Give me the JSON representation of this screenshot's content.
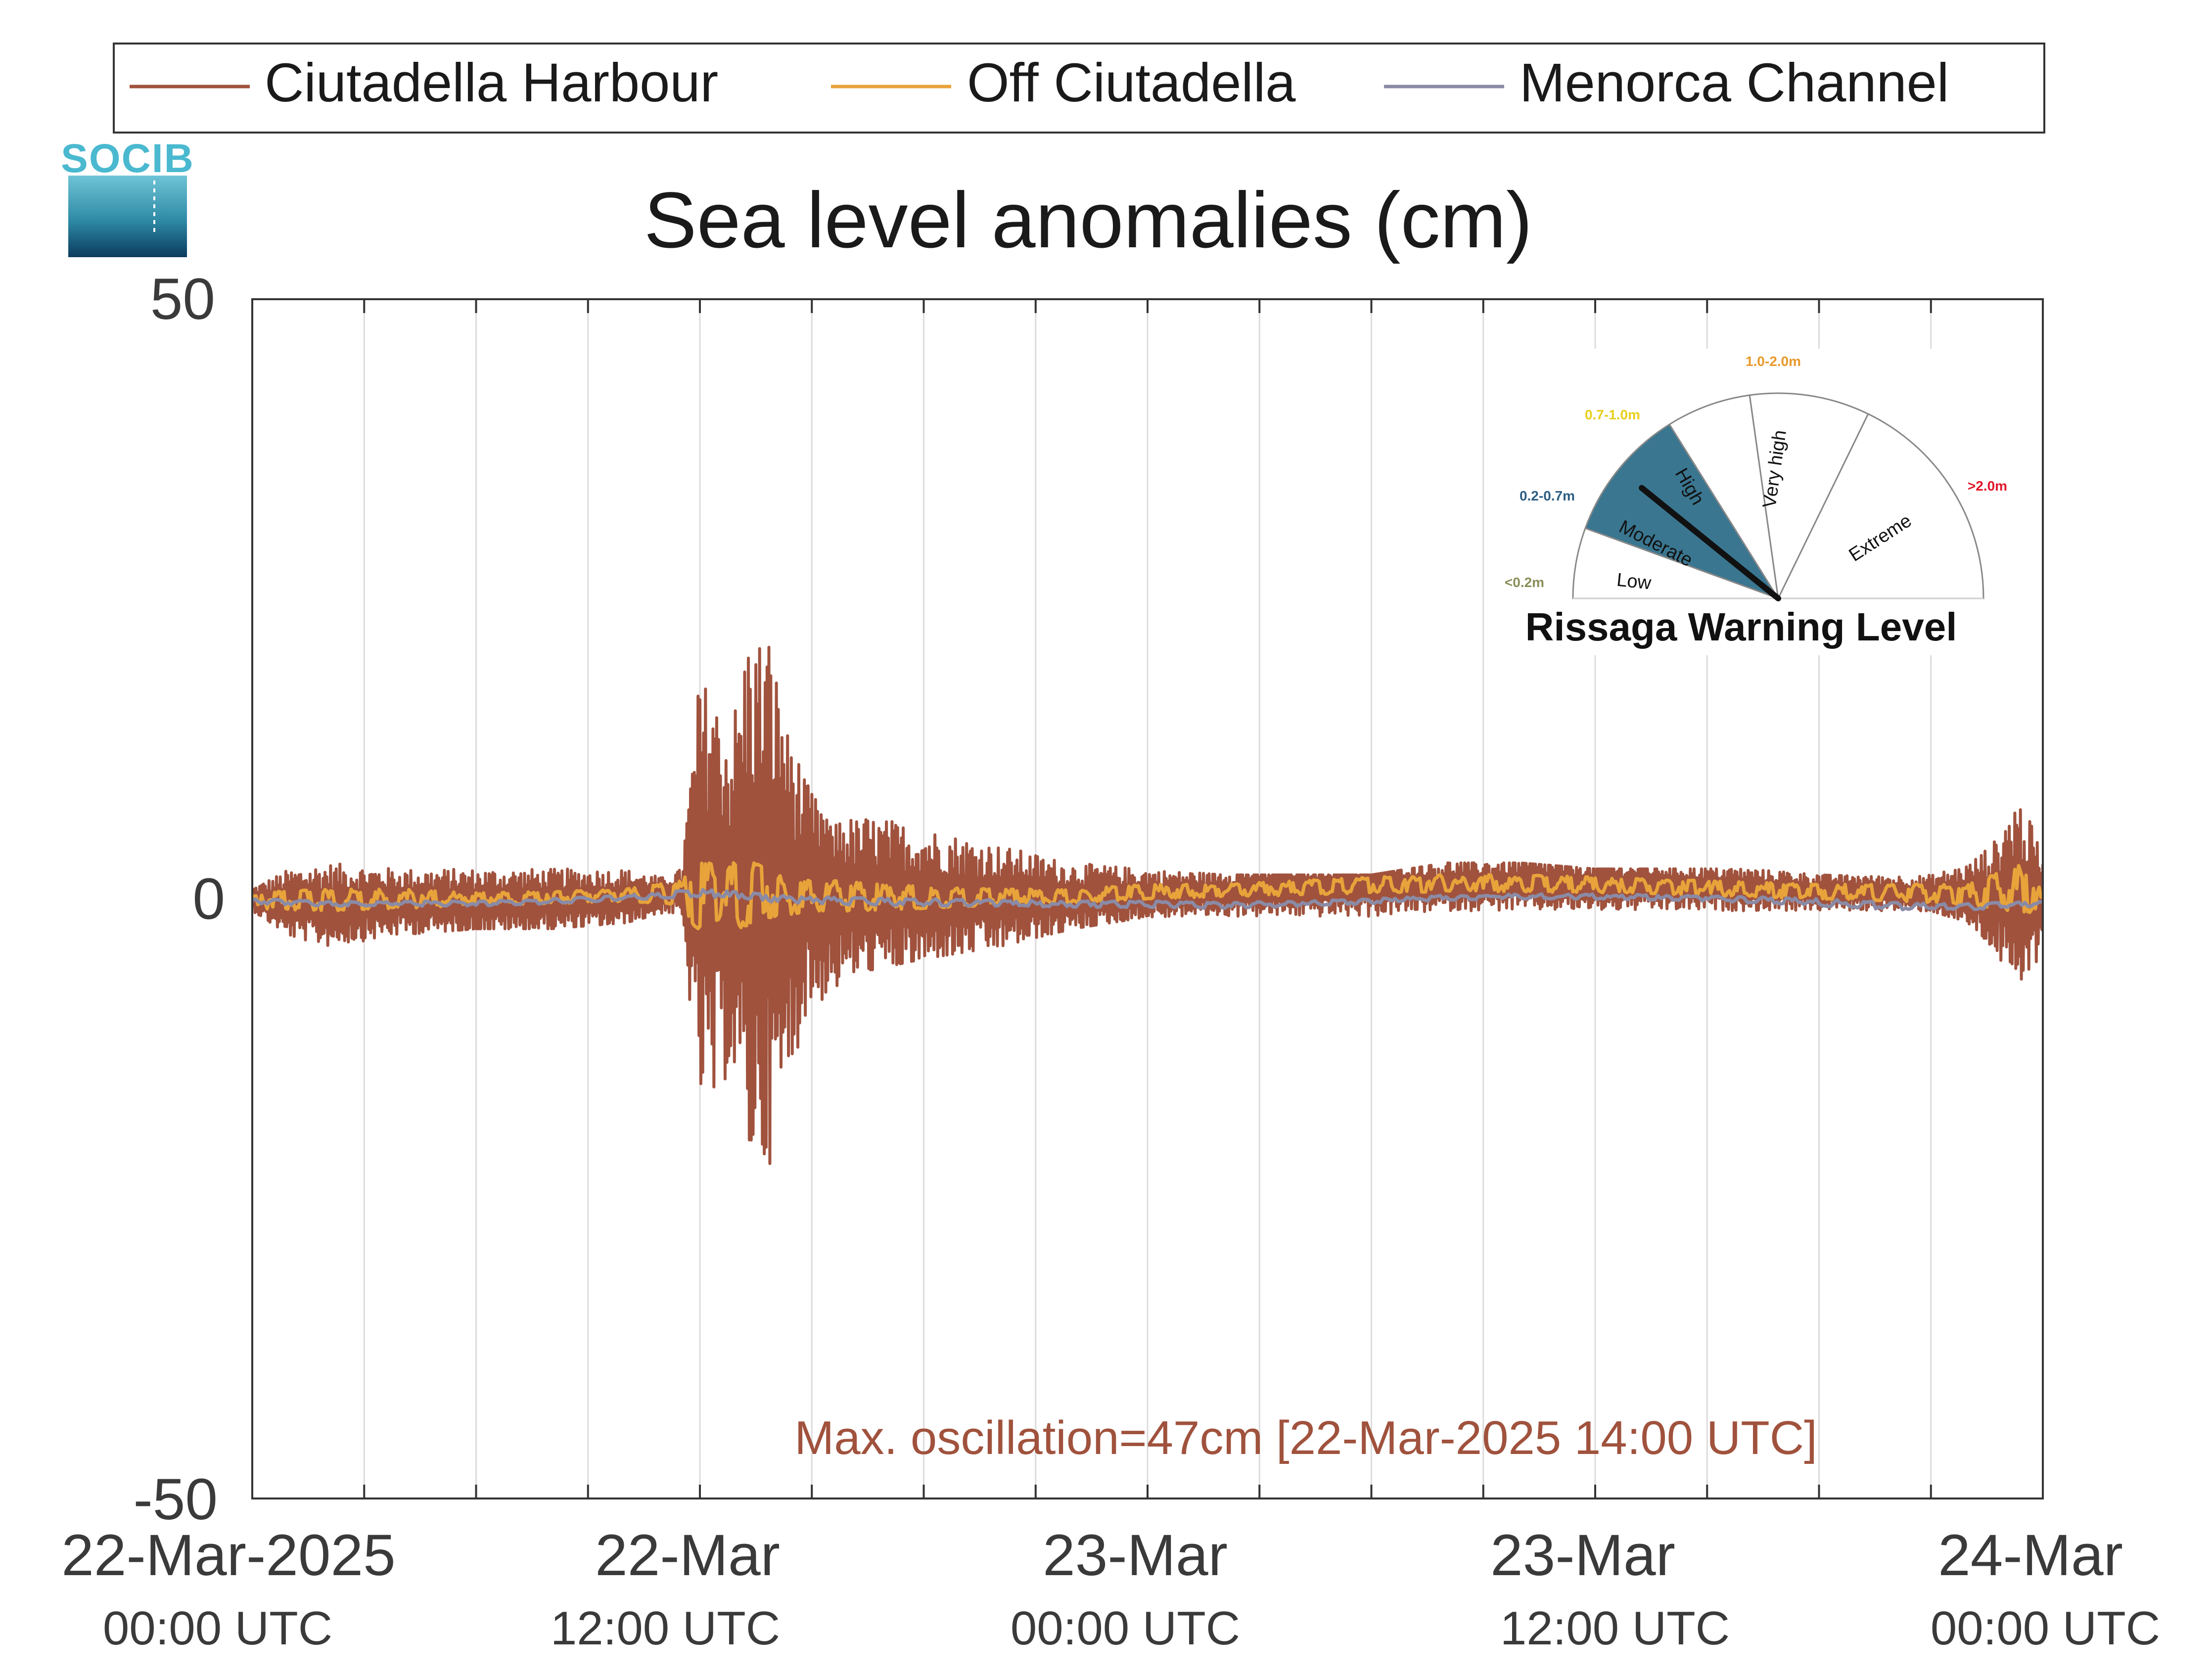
{
  "logo": {
    "text": "SOCIB"
  },
  "legend": {
    "items": [
      {
        "name": "Ciutadella Harbour",
        "color": "#a0523d"
      },
      {
        "name": "Off Ciutadella",
        "color": "#e8a33a"
      },
      {
        "name": "Menorca Channel",
        "color": "#8a8ba6"
      }
    ]
  },
  "chart_data": {
    "type": "line",
    "title": "Sea level anomalies (cm)",
    "xlabel": "",
    "ylabel": "",
    "xlim": [
      "22-Mar-2025 00:00",
      "24-Mar-2025 00:00"
    ],
    "ylim": [
      -50,
      50
    ],
    "y_ticks": [
      "50",
      "0",
      "-50"
    ],
    "x_ticks": [
      {
        "date": "22-Mar-2025",
        "time": "00:00 UTC"
      },
      {
        "date": "22-Mar",
        "time": "12:00 UTC"
      },
      {
        "date": "23-Mar",
        "time": "00:00 UTC"
      },
      {
        "date": "23-Mar",
        "time": "12:00 UTC"
      },
      {
        "date": "24-Mar",
        "time": "00:00 UTC"
      }
    ],
    "minor_grid_hours": 3,
    "grid": true,
    "legend_position": "top",
    "annotation": "Max. oscillation=47cm [22-Mar-2025 14:00 UTC]",
    "annotation_color": "#a0523d",
    "series": [
      {
        "name": "Ciutadella Harbour",
        "color": "#a0523d",
        "envelope": {
          "hours": [
            0,
            1,
            2,
            4,
            6,
            8,
            10,
            11,
            11.5,
            12,
            12.3,
            12.8,
            13.3,
            13.8,
            14.3,
            14.8,
            15.5,
            16.5,
            18,
            20,
            22,
            24,
            26,
            28,
            30,
            32,
            34,
            36,
            38,
            40,
            42,
            44,
            45,
            46,
            46.8,
            47.3,
            48
          ],
          "max": [
            1,
            2.5,
            3,
            2.5,
            2.5,
            2.5,
            2.5,
            1.8,
            2.5,
            19,
            16,
            13,
            23,
            22,
            14,
            10,
            6,
            7,
            6,
            4.5,
            3,
            2.5,
            2,
            2,
            2,
            3,
            3,
            2.5,
            2.5,
            2.5,
            2,
            1.8,
            2,
            3,
            5,
            9,
            4
          ],
          "min": [
            -1,
            -3,
            -4,
            -3,
            -2.5,
            -2.5,
            -2,
            -1.2,
            -1.5,
            -17,
            -19,
            -14,
            -21,
            -23,
            -17,
            -10,
            -8,
            -6,
            -5,
            -4,
            -2.5,
            -1.5,
            -1.5,
            -1.5,
            -1.5,
            -1,
            -1,
            -1,
            -1,
            -1,
            -1,
            -1,
            -1,
            -2,
            -5,
            -9,
            -4
          ],
          "mean": [
            0,
            -0.5,
            -0.5,
            -0.3,
            -0.3,
            -0.2,
            0,
            0.3,
            0.5,
            0.6,
            0.5,
            0.3,
            0.2,
            0.1,
            0,
            0,
            0,
            0,
            0,
            0,
            0,
            0.3,
            0.5,
            0.8,
            1,
            1.1,
            1.2,
            1.1,
            1,
            0.8,
            0.6,
            0.5,
            0.4,
            0.3,
            0.2,
            0,
            0
          ]
        }
      },
      {
        "name": "Off Ciutadella",
        "color": "#e8a33a",
        "envelope": {
          "hours": [
            0,
            2,
            4,
            6,
            8,
            10,
            11.5,
            12,
            12.5,
            13,
            13.5,
            14,
            15,
            16,
            18,
            20,
            22,
            24,
            26,
            28,
            30,
            32,
            34,
            36,
            38,
            40,
            42,
            44,
            46,
            47.5,
            48
          ],
          "max": [
            0.5,
            0.8,
            0.8,
            0.5,
            0.6,
            0.8,
            1.5,
            3.5,
            2.5,
            3.5,
            3,
            2,
            1.5,
            1.5,
            1,
            0.8,
            0.8,
            1.2,
            1.2,
            1.5,
            1.8,
            2,
            2,
            1.8,
            1.6,
            1.4,
            1.2,
            1.2,
            1.2,
            3,
            0.5
          ],
          "min": [
            -0.8,
            -1,
            -0.8,
            -0.5,
            -0.4,
            -0.2,
            -0.5,
            -3,
            -2,
            -2.5,
            -2,
            -1.5,
            -1,
            -1,
            -0.8,
            -0.5,
            -0.3,
            0,
            0.2,
            0.3,
            0.5,
            0.6,
            0.6,
            0.5,
            0.4,
            0.2,
            0,
            -0.2,
            -0.5,
            -1.5,
            -0.8
          ]
        }
      },
      {
        "name": "Menorca Channel",
        "color": "#8a8ba6",
        "envelope": {
          "hours": [
            0,
            2,
            4,
            6,
            8,
            10,
            12,
            13,
            14,
            16,
            18,
            20,
            22,
            24,
            26,
            28,
            30,
            32,
            34,
            36,
            38,
            40,
            42,
            44,
            46,
            48
          ],
          "max": [
            0,
            -0.2,
            -0.2,
            -0.2,
            0,
            0.3,
            0.8,
            0.6,
            0.3,
            0.1,
            0,
            -0.1,
            -0.2,
            -0.2,
            -0.3,
            -0.2,
            0,
            0.3,
            0.4,
            0.4,
            0.3,
            0.2,
            0,
            -0.3,
            -0.4,
            -0.2
          ],
          "min": [
            -0.4,
            -0.6,
            -0.6,
            -0.6,
            -0.4,
            -0.1,
            0.2,
            0,
            -0.3,
            -0.5,
            -0.6,
            -0.6,
            -0.7,
            -0.7,
            -0.8,
            -0.6,
            -0.4,
            -0.1,
            0,
            0,
            -0.1,
            -0.3,
            -0.6,
            -0.9,
            -0.9,
            -0.6
          ]
        }
      }
    ]
  },
  "gauge": {
    "title": "Rissaga Warning Level",
    "active_level": "Moderate",
    "needle_level": "Moderate",
    "active_color": "#3a7690",
    "levels": [
      {
        "name": "Low",
        "range": "<0.2m",
        "range_color": "#8a8f5a"
      },
      {
        "name": "Moderate",
        "range": "0.2-0.7m",
        "range_color": "#2c5e84"
      },
      {
        "name": "High",
        "range": "0.7-1.0m",
        "range_color": "#e8cf1d"
      },
      {
        "name": "Very high",
        "range": "1.0-2.0m",
        "range_color": "#e8992a"
      },
      {
        "name": "Extreme",
        "range": ">2.0m",
        "range_color": "#e0172a"
      }
    ]
  }
}
